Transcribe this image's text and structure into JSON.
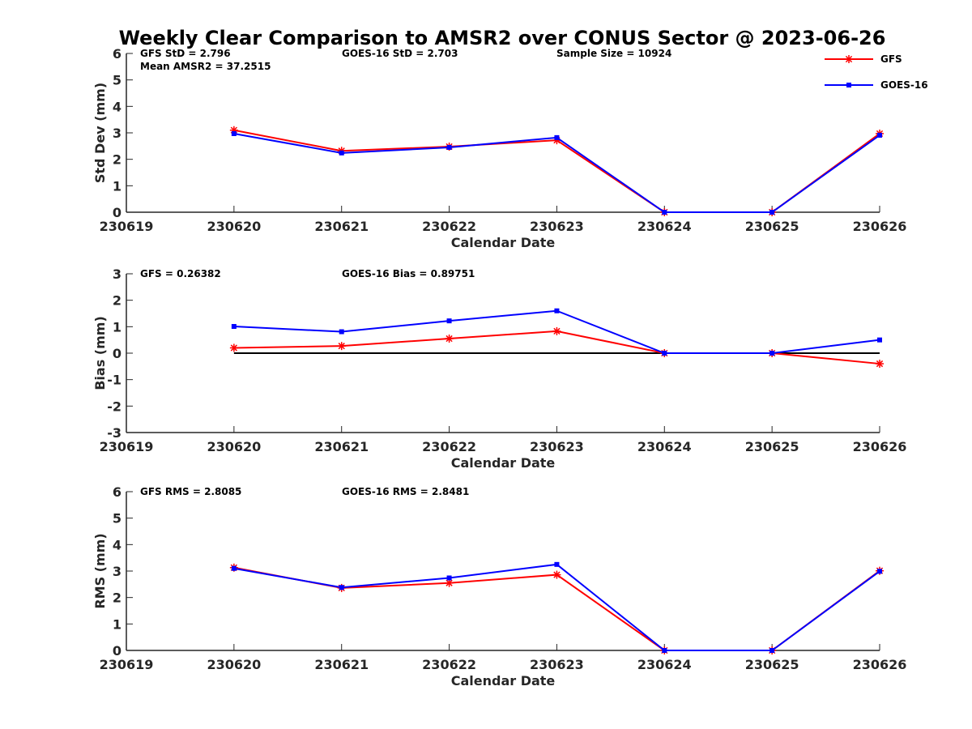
{
  "title": "Weekly Clear Comparison to AMSR2 over CONUS Sector @ 2023-06-26",
  "colors": {
    "GFS": "#ff0000",
    "GOES-16": "#0000ff",
    "zero_line": "#000000"
  },
  "legend": {
    "placement": "top-right",
    "entries": [
      {
        "name": "GFS",
        "color": "#ff0000",
        "marker": "asterisk"
      },
      {
        "name": "GOES-16",
        "color": "#0000ff",
        "marker": "square"
      }
    ]
  },
  "chart_data": [
    {
      "type": "line",
      "xlabel": "Calendar Date",
      "ylabel": "Std Dev (mm)",
      "x_ticks": [
        "230619",
        "230620",
        "230621",
        "230622",
        "230623",
        "230624",
        "230625",
        "230626"
      ],
      "ylim": [
        0,
        6
      ],
      "y_ticks": [
        "0",
        "1",
        "2",
        "3",
        "4",
        "5",
        "6"
      ],
      "zero_line": false,
      "annotations": [
        "GFS StD = 2.796",
        "GOES-16 StD = 2.703",
        "Sample Size = 10924",
        "Mean AMSR2 = 37.2515"
      ],
      "x": [
        "230620",
        "230621",
        "230622",
        "230623",
        "230624",
        "230625",
        "230626"
      ],
      "series": [
        {
          "name": "GFS",
          "values": [
            3.1,
            2.32,
            2.48,
            2.72,
            0.0,
            0.0,
            2.97
          ]
        },
        {
          "name": "GOES-16",
          "values": [
            2.97,
            2.24,
            2.45,
            2.82,
            0.0,
            0.0,
            2.91
          ]
        }
      ]
    },
    {
      "type": "line",
      "xlabel": "Calendar Date",
      "ylabel": "Bias (mm)",
      "x_ticks": [
        "230619",
        "230620",
        "230621",
        "230622",
        "230623",
        "230624",
        "230625",
        "230626"
      ],
      "ylim": [
        -3,
        3
      ],
      "y_ticks": [
        "-3",
        "-2",
        "-1",
        "0",
        "1",
        "2",
        "3"
      ],
      "zero_line": true,
      "annotations": [
        "GFS = 0.26382",
        "GOES-16 Bias  = 0.89751"
      ],
      "x": [
        "230620",
        "230621",
        "230622",
        "230623",
        "230624",
        "230625",
        "230626"
      ],
      "series": [
        {
          "name": "GFS",
          "values": [
            0.2,
            0.27,
            0.55,
            0.83,
            0.0,
            0.0,
            -0.4
          ]
        },
        {
          "name": "GOES-16",
          "values": [
            1.01,
            0.81,
            1.22,
            1.6,
            0.0,
            0.0,
            0.5
          ]
        }
      ]
    },
    {
      "type": "line",
      "xlabel": "Calendar Date",
      "ylabel": "RMS (mm)",
      "x_ticks": [
        "230619",
        "230620",
        "230621",
        "230622",
        "230623",
        "230624",
        "230625",
        "230626"
      ],
      "ylim": [
        0,
        6
      ],
      "y_ticks": [
        "0",
        "1",
        "2",
        "3",
        "4",
        "5",
        "6"
      ],
      "zero_line": false,
      "annotations": [
        "GFS RMS = 2.8085",
        "GOES-16 RMS = 2.8481"
      ],
      "x": [
        "230620",
        "230621",
        "230622",
        "230623",
        "230624",
        "230625",
        "230626"
      ],
      "series": [
        {
          "name": "GFS",
          "values": [
            3.13,
            2.36,
            2.55,
            2.86,
            0.0,
            0.0,
            3.01
          ]
        },
        {
          "name": "GOES-16",
          "values": [
            3.1,
            2.38,
            2.74,
            3.25,
            0.0,
            0.0,
            2.99
          ]
        }
      ]
    }
  ]
}
